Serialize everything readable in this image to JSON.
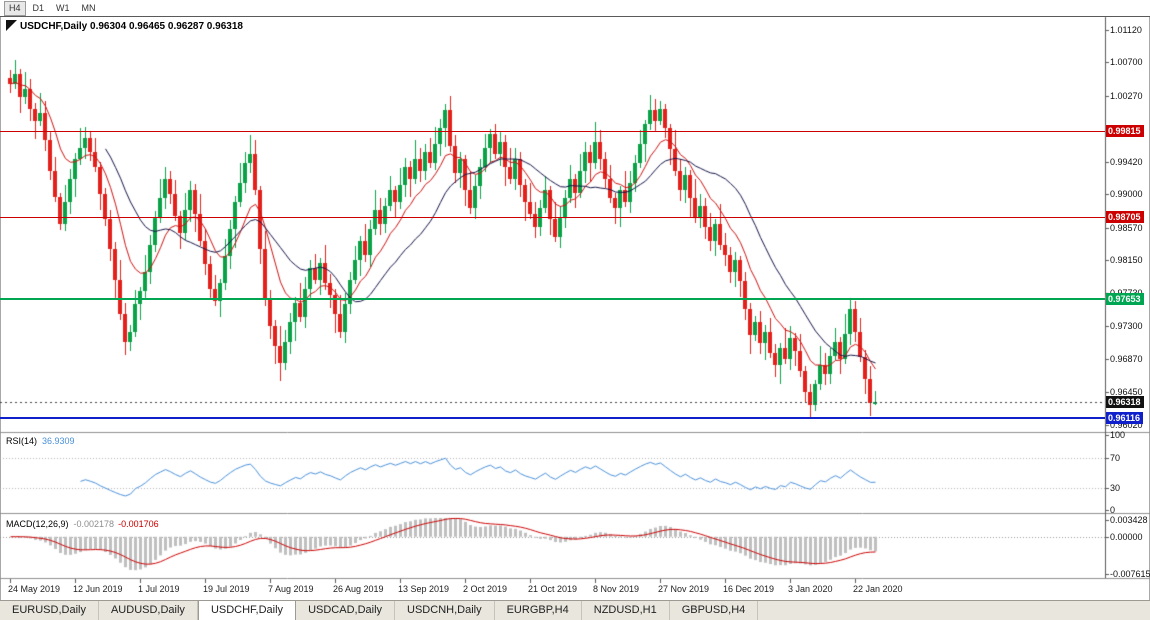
{
  "toolbar": {
    "timeframes": [
      "H4",
      "D1",
      "W1",
      "MN"
    ],
    "active": "H4"
  },
  "chart": {
    "title_symbol": "USDCHF,Daily",
    "title_ohlc": "0.96304 0.96465 0.96287 0.96318"
  },
  "indicators": {
    "rsi": {
      "name": "RSI(14)",
      "value": "36.9309"
    },
    "macd": {
      "name": "MACD(12,26,9)",
      "value_main": "-0.002178",
      "value_signal": "-0.001706"
    }
  },
  "bottom_tabs": {
    "active": "USDCHF,Daily",
    "items": [
      "EURUSD,Daily",
      "AUDUSD,Daily",
      "USDCHF,Daily",
      "USDCAD,Daily",
      "USDCNH,Daily",
      "EURGBP,H4",
      "NZDUSD,H1",
      "GBPUSD,H4"
    ]
  },
  "chart_data": {
    "type": "candlestick",
    "symbol": "USDCHF",
    "timeframe": "Daily",
    "last_candle": {
      "open": 0.96304,
      "high": 0.96465,
      "low": 0.96287,
      "close": 0.96318
    },
    "y_range": {
      "min": 0.95948,
      "max": 1.01285
    },
    "price_grid_labels": [
      "1.01120",
      "1.00700",
      "1.00270",
      "0.99420",
      "0.99000",
      "0.98570",
      "0.98150",
      "0.97730",
      "0.97300",
      "0.96870",
      "0.96450",
      "0.96020"
    ],
    "x_axis": {
      "tick_indices": [
        0,
        13,
        26,
        39,
        52,
        65,
        78,
        91,
        104,
        117,
        130,
        143,
        156,
        169
      ],
      "tick_labels": [
        "24 May 2019",
        "12 Jun 2019",
        "1 Jul 2019",
        "19 Jul 2019",
        "7 Aug 2019",
        "26 Aug 2019",
        "13 Sep 2019",
        "2 Oct 2019",
        "21 Oct 2019",
        "8 Nov 2019",
        "27 Nov 2019",
        "16 Dec 2019",
        "3 Jan 2020",
        "22 Jan 2020"
      ]
    },
    "candle_colors": {
      "up": "#0aa147",
      "down": "#e3201b"
    },
    "moving_averages": [
      {
        "type": "ema",
        "period": 10,
        "color": "#cc1111"
      },
      {
        "type": "sma",
        "period": 20,
        "color": "#131347"
      }
    ],
    "levels": [
      {
        "name": "resistance-line-1",
        "price": 0.99815,
        "label": "0.99815",
        "color": "#cc0000",
        "width": 1
      },
      {
        "name": "resistance-line-2",
        "price": 0.98705,
        "label": "0.98705",
        "color": "#cc0000",
        "width": 1
      },
      {
        "name": "support-line-green",
        "price": 0.97653,
        "label": "0.97653",
        "color": "#00a651",
        "width": 2
      },
      {
        "name": "support-line-blue",
        "price": 0.96116,
        "label": "0.96116",
        "color": "#1021cc",
        "width": 2
      }
    ],
    "current_price": {
      "price": 0.96318,
      "label": "0.96318",
      "color": "#111111"
    },
    "rsi": {
      "period": 14,
      "value": 36.9309,
      "color": "#4a90d9",
      "axis_labels": [
        100,
        70,
        30,
        0
      ],
      "guide_levels": [
        70,
        30
      ]
    },
    "macd": {
      "fast": 12,
      "slow": 26,
      "signal_period": 9,
      "value_main": -0.002178,
      "value_signal": -0.001706,
      "range": {
        "max": 0.003428,
        "min": -0.007615
      },
      "axis_labels": [
        "0.003428",
        "0.00000",
        "-0.007615"
      ],
      "histogram_color": "#bfbfbf",
      "signal_color": "#cc0000"
    },
    "candles": [
      [
        1.005,
        1.006,
        1.003,
        1.0042
      ],
      [
        1.0042,
        1.0073,
        1.0036,
        1.0055
      ],
      [
        1.0055,
        1.0061,
        1.0005,
        1.0025
      ],
      [
        1.0025,
        1.0058,
        1.0016,
        1.0036
      ],
      [
        1.0036,
        1.0048,
        0.9994,
        1.001
      ],
      [
        1.001,
        1.0018,
        0.9971,
        0.9995
      ],
      [
        0.9995,
        1.003,
        0.9988,
        1.0005
      ],
      [
        1.0005,
        1.002,
        0.9956,
        0.997
      ],
      [
        0.997,
        0.998,
        0.9918,
        0.993
      ],
      [
        0.993,
        0.9948,
        0.989,
        0.9896
      ],
      [
        0.9896,
        0.9902,
        0.9854,
        0.9862
      ],
      [
        0.9862,
        0.9912,
        0.9853,
        0.989
      ],
      [
        0.989,
        0.9932,
        0.9874,
        0.992
      ],
      [
        0.992,
        0.9953,
        0.9896,
        0.9945
      ],
      [
        0.9945,
        0.9985,
        0.9938,
        0.996
      ],
      [
        0.996,
        0.9987,
        0.9946,
        0.9972
      ],
      [
        0.9972,
        0.9982,
        0.9943,
        0.9955
      ],
      [
        0.9955,
        0.9973,
        0.9929,
        0.9935
      ],
      [
        0.9935,
        0.9941,
        0.988,
        0.99
      ],
      [
        0.99,
        0.9908,
        0.9859,
        0.9868
      ],
      [
        0.9868,
        0.988,
        0.9814,
        0.983
      ],
      [
        0.983,
        0.9838,
        0.9766,
        0.979
      ],
      [
        0.979,
        0.9815,
        0.9738,
        0.9745
      ],
      [
        0.9745,
        0.976,
        0.9693,
        0.971
      ],
      [
        0.971,
        0.9732,
        0.9698,
        0.9722
      ],
      [
        0.9722,
        0.9776,
        0.9716,
        0.9758
      ],
      [
        0.9758,
        0.9781,
        0.9738,
        0.9775
      ],
      [
        0.9775,
        0.9822,
        0.9766,
        0.98
      ],
      [
        0.98,
        0.9847,
        0.9784,
        0.9835
      ],
      [
        0.9835,
        0.9878,
        0.9826,
        0.987
      ],
      [
        0.987,
        0.992,
        0.9863,
        0.9895
      ],
      [
        0.9895,
        0.9935,
        0.9881,
        0.992
      ],
      [
        0.992,
        0.993,
        0.9888,
        0.99
      ],
      [
        0.99,
        0.9918,
        0.9866,
        0.9872
      ],
      [
        0.9872,
        0.9878,
        0.983,
        0.985
      ],
      [
        0.985,
        0.9902,
        0.9841,
        0.988
      ],
      [
        0.988,
        0.9917,
        0.9864,
        0.9905
      ],
      [
        0.9905,
        0.9913,
        0.9851,
        0.9875
      ],
      [
        0.9875,
        0.99,
        0.9833,
        0.984
      ],
      [
        0.984,
        0.9855,
        0.9796,
        0.981
      ],
      [
        0.981,
        0.982,
        0.9766,
        0.9778
      ],
      [
        0.9778,
        0.9796,
        0.9756,
        0.9762
      ],
      [
        0.9762,
        0.9791,
        0.9742,
        0.9785
      ],
      [
        0.9785,
        0.9842,
        0.9776,
        0.982
      ],
      [
        0.982,
        0.9867,
        0.9804,
        0.9855
      ],
      [
        0.9855,
        0.9898,
        0.9831,
        0.989
      ],
      [
        0.989,
        0.994,
        0.9883,
        0.9915
      ],
      [
        0.9915,
        0.9955,
        0.9901,
        0.994
      ],
      [
        0.994,
        0.9976,
        0.9928,
        0.9952
      ],
      [
        0.9952,
        0.997,
        0.9899,
        0.9905
      ],
      [
        0.9905,
        0.9911,
        0.981,
        0.983
      ],
      [
        0.983,
        0.9852,
        0.9756,
        0.9765
      ],
      [
        0.9765,
        0.9777,
        0.9714,
        0.973
      ],
      [
        0.973,
        0.9738,
        0.9681,
        0.9705
      ],
      [
        0.9705,
        0.973,
        0.9659,
        0.9682
      ],
      [
        0.9682,
        0.9725,
        0.9673,
        0.971
      ],
      [
        0.971,
        0.9747,
        0.9694,
        0.9735
      ],
      [
        0.9735,
        0.9768,
        0.9711,
        0.976
      ],
      [
        0.976,
        0.9785,
        0.9735,
        0.9742
      ],
      [
        0.9742,
        0.9793,
        0.9728,
        0.9778
      ],
      [
        0.9778,
        0.9815,
        0.9766,
        0.9805
      ],
      [
        0.9805,
        0.9823,
        0.9784,
        0.979
      ],
      [
        0.979,
        0.9818,
        0.977,
        0.9812
      ],
      [
        0.9812,
        0.9834,
        0.9776,
        0.9785
      ],
      [
        0.9785,
        0.9797,
        0.9754,
        0.977
      ],
      [
        0.977,
        0.9778,
        0.9721,
        0.9745
      ],
      [
        0.9745,
        0.977,
        0.9715,
        0.9722
      ],
      [
        0.9722,
        0.9773,
        0.9708,
        0.9758
      ],
      [
        0.9758,
        0.98,
        0.9746,
        0.979
      ],
      [
        0.979,
        0.9833,
        0.9784,
        0.9815
      ],
      [
        0.9815,
        0.9846,
        0.9795,
        0.984
      ],
      [
        0.984,
        0.9862,
        0.9813,
        0.9822
      ],
      [
        0.9822,
        0.9867,
        0.9806,
        0.9855
      ],
      [
        0.9855,
        0.9905,
        0.9848,
        0.988
      ],
      [
        0.988,
        0.9895,
        0.9848,
        0.9862
      ],
      [
        0.9862,
        0.9895,
        0.985,
        0.9885
      ],
      [
        0.9885,
        0.9923,
        0.9879,
        0.9905
      ],
      [
        0.9905,
        0.9911,
        0.987,
        0.989
      ],
      [
        0.989,
        0.9934,
        0.9881,
        0.9912
      ],
      [
        0.9912,
        0.9947,
        0.9896,
        0.9935
      ],
      [
        0.9935,
        0.9943,
        0.9896,
        0.992
      ],
      [
        0.992,
        0.997,
        0.9913,
        0.9945
      ],
      [
        0.9945,
        0.996,
        0.9916,
        0.993
      ],
      [
        0.993,
        0.9965,
        0.9918,
        0.9955
      ],
      [
        0.9955,
        0.9973,
        0.9934,
        0.994
      ],
      [
        0.994,
        0.9987,
        0.9931,
        0.9965
      ],
      [
        0.9965,
        0.9997,
        0.9949,
        0.9985
      ],
      [
        0.9985,
        1.0016,
        0.9961,
        1.0008
      ],
      [
        1.0008,
        1.0027,
        0.9955,
        0.9962
      ],
      [
        0.9962,
        0.9977,
        0.9914,
        0.9928
      ],
      [
        0.9928,
        0.9955,
        0.9908,
        0.9945
      ],
      [
        0.9945,
        0.9951,
        0.9885,
        0.9905
      ],
      [
        0.9905,
        0.993,
        0.9875,
        0.9882
      ],
      [
        0.9882,
        0.9925,
        0.9868,
        0.991
      ],
      [
        0.991,
        0.9945,
        0.9894,
        0.9935
      ],
      [
        0.9935,
        0.9978,
        0.9929,
        0.996
      ],
      [
        0.996,
        0.9984,
        0.994,
        0.9978
      ],
      [
        0.9978,
        0.999,
        0.9945,
        0.9952
      ],
      [
        0.9952,
        0.998,
        0.9936,
        0.9968
      ],
      [
        0.9968,
        0.9976,
        0.9911,
        0.9935
      ],
      [
        0.9935,
        0.996,
        0.9913,
        0.992
      ],
      [
        0.992,
        0.996,
        0.9906,
        0.9945
      ],
      [
        0.9945,
        0.9955,
        0.9896,
        0.9912
      ],
      [
        0.9912,
        0.992,
        0.9866,
        0.989
      ],
      [
        0.989,
        0.9915,
        0.9868,
        0.9875
      ],
      [
        0.9875,
        0.989,
        0.9844,
        0.9858
      ],
      [
        0.9858,
        0.9892,
        0.9846,
        0.9882
      ],
      [
        0.9882,
        0.9923,
        0.9876,
        0.9905
      ],
      [
        0.9905,
        0.9911,
        0.9848,
        0.9868
      ],
      [
        0.9868,
        0.989,
        0.9838,
        0.9845
      ],
      [
        0.9845,
        0.9885,
        0.9831,
        0.987
      ],
      [
        0.987,
        0.9905,
        0.9856,
        0.9895
      ],
      [
        0.9895,
        0.9938,
        0.9889,
        0.992
      ],
      [
        0.992,
        0.9926,
        0.9882,
        0.9902
      ],
      [
        0.9902,
        0.9952,
        0.9895,
        0.993
      ],
      [
        0.993,
        0.9967,
        0.9914,
        0.9955
      ],
      [
        0.9955,
        0.9963,
        0.9916,
        0.994
      ],
      [
        0.994,
        0.9993,
        0.9933,
        0.9968
      ],
      [
        0.9968,
        0.9983,
        0.9931,
        0.9945
      ],
      [
        0.9945,
        0.9955,
        0.9908,
        0.992
      ],
      [
        0.992,
        0.9938,
        0.9889,
        0.9895
      ],
      [
        0.9895,
        0.9901,
        0.9862,
        0.9882
      ],
      [
        0.9882,
        0.9911,
        0.9858,
        0.9905
      ],
      [
        0.9905,
        0.993,
        0.9883,
        0.989
      ],
      [
        0.989,
        0.993,
        0.9876,
        0.9915
      ],
      [
        0.9915,
        0.995,
        0.9903,
        0.994
      ],
      [
        0.994,
        0.9983,
        0.9934,
        0.9965
      ],
      [
        0.9965,
        0.9996,
        0.9941,
        0.999
      ],
      [
        0.999,
        1.0028,
        0.9983,
        1.0008
      ],
      [
        1.0008,
        1.0023,
        0.9981,
        0.9995
      ],
      [
        0.9995,
        1.002,
        0.9989,
        1.001
      ],
      [
        1.001,
        1.0016,
        0.9973,
        0.9985
      ],
      [
        0.9985,
        0.9991,
        0.9938,
        0.9958
      ],
      [
        0.9958,
        0.9983,
        0.9923,
        0.993
      ],
      [
        0.993,
        0.9945,
        0.9891,
        0.9905
      ],
      [
        0.9905,
        0.9935,
        0.9889,
        0.9925
      ],
      [
        0.9925,
        0.9931,
        0.9871,
        0.9895
      ],
      [
        0.9895,
        0.992,
        0.9863,
        0.987
      ],
      [
        0.987,
        0.99,
        0.9856,
        0.9885
      ],
      [
        0.9885,
        0.9895,
        0.9842,
        0.9858
      ],
      [
        0.9858,
        0.9876,
        0.9827,
        0.984
      ],
      [
        0.984,
        0.9868,
        0.982,
        0.9862
      ],
      [
        0.9862,
        0.9887,
        0.9828,
        0.9835
      ],
      [
        0.9835,
        0.985,
        0.9808,
        0.9822
      ],
      [
        0.9822,
        0.9832,
        0.9786,
        0.98
      ],
      [
        0.98,
        0.9825,
        0.978,
        0.9815
      ],
      [
        0.9815,
        0.9821,
        0.9768,
        0.9788
      ],
      [
        0.9788,
        0.98,
        0.9738,
        0.9752
      ],
      [
        0.9752,
        0.976,
        0.9694,
        0.9718
      ],
      [
        0.9718,
        0.9743,
        0.9711,
        0.9735
      ],
      [
        0.9735,
        0.975,
        0.9694,
        0.9708
      ],
      [
        0.9708,
        0.9732,
        0.9686,
        0.9722
      ],
      [
        0.9722,
        0.974,
        0.9689,
        0.9695
      ],
      [
        0.9695,
        0.9707,
        0.9664,
        0.968
      ],
      [
        0.968,
        0.9708,
        0.9656,
        0.9702
      ],
      [
        0.9702,
        0.9727,
        0.9681,
        0.9688
      ],
      [
        0.9688,
        0.973,
        0.9674,
        0.9715
      ],
      [
        0.9715,
        0.9721,
        0.9678,
        0.9698
      ],
      [
        0.9698,
        0.972,
        0.9665,
        0.9672
      ],
      [
        0.9672,
        0.9678,
        0.9631,
        0.9645
      ],
      [
        0.9645,
        0.9655,
        0.9612,
        0.9628
      ],
      [
        0.9628,
        0.9661,
        0.962,
        0.9655
      ],
      [
        0.9655,
        0.9705,
        0.9648,
        0.968
      ],
      [
        0.968,
        0.9695,
        0.9654,
        0.9668
      ],
      [
        0.9668,
        0.9702,
        0.9656,
        0.9692
      ],
      [
        0.9692,
        0.9728,
        0.9686,
        0.971
      ],
      [
        0.971,
        0.9716,
        0.9668,
        0.9688
      ],
      [
        0.9688,
        0.9745,
        0.9681,
        0.972
      ],
      [
        0.972,
        0.9766,
        0.9706,
        0.9752
      ],
      [
        0.9752,
        0.9762,
        0.971,
        0.9722
      ],
      [
        0.9722,
        0.974,
        0.9684,
        0.969
      ],
      [
        0.969,
        0.9699,
        0.9642,
        0.9662
      ],
      [
        0.9662,
        0.9678,
        0.9614,
        0.9631
      ],
      [
        0.96304,
        0.96465,
        0.96287,
        0.96318
      ]
    ]
  }
}
